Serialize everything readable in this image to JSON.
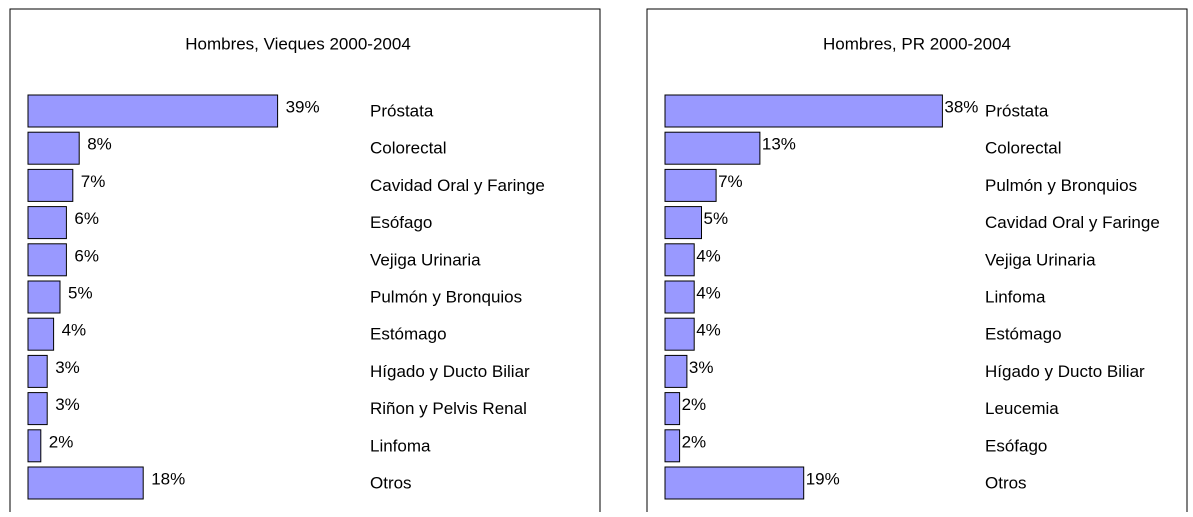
{
  "chart_data": [
    {
      "type": "bar",
      "orientation": "horizontal",
      "title": "Hombres, Vieques 2000-2004",
      "color": "#9999ff",
      "categories": [
        "Próstata",
        "Colorectal",
        "Cavidad Oral y Faringe",
        "Esófago",
        "Vejiga Urinaria",
        "Pulmón y Bronquios",
        "Estómago",
        "Hígado y Ducto Biliar",
        "Riñon y Pelvis Renal",
        "Linfoma",
        "Otros"
      ],
      "values": [
        39,
        8,
        7,
        6,
        6,
        5,
        4,
        3,
        3,
        2,
        18
      ],
      "value_labels": [
        "39%",
        "8%",
        "7%",
        "6%",
        "6%",
        "5%",
        "4%",
        "3%",
        "3%",
        "2%",
        "18%"
      ],
      "xlim": [
        0,
        50
      ]
    },
    {
      "type": "bar",
      "orientation": "horizontal",
      "title": "Hombres, PR 2000-2004",
      "color": "#9999ff",
      "categories": [
        "Próstata",
        "Colorectal",
        "Pulmón y Bronquios",
        "Cavidad Oral y Faringe",
        "Vejiga Urinaria",
        "Linfoma",
        "Estómago",
        "Hígado y Ducto Biliar",
        "Leucemia",
        "Esófago",
        "Otros"
      ],
      "values": [
        38,
        13,
        7,
        5,
        4,
        4,
        4,
        3,
        2,
        2,
        19
      ],
      "value_labels": [
        "38%",
        "13%",
        "7%",
        "5%",
        "4%",
        "4%",
        "4%",
        "3%",
        "2%",
        "2%",
        "19%"
      ],
      "xlim": [
        0,
        50
      ]
    }
  ]
}
